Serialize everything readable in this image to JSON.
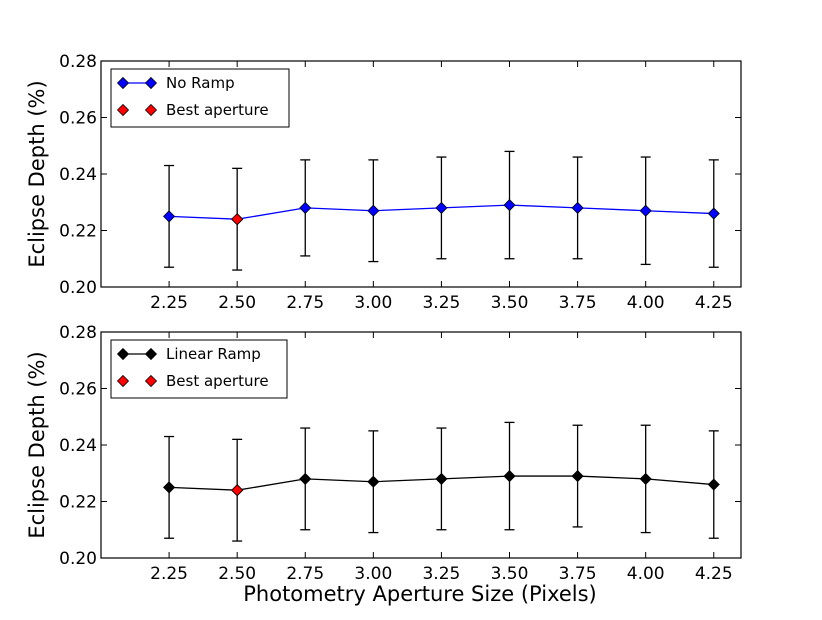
{
  "chart_data": [
    {
      "type": "line",
      "title": "",
      "xlabel": "",
      "ylabel": "Eclipse Depth (%)",
      "xlim": [
        2.0,
        4.35
      ],
      "ylim": [
        0.2,
        0.28
      ],
      "x_ticks": [
        "2.25",
        "2.50",
        "2.75",
        "3.00",
        "3.25",
        "3.50",
        "3.75",
        "4.00",
        "4.25"
      ],
      "y_ticks": [
        "0.20",
        "0.22",
        "0.24",
        "0.26",
        "0.28"
      ],
      "series": [
        {
          "name": "No Ramp",
          "color": "#0000ff",
          "marker_color": "#0000ff",
          "x": [
            2.25,
            2.5,
            2.75,
            3.0,
            3.25,
            3.5,
            3.75,
            4.0,
            4.25
          ],
          "values": [
            0.225,
            0.224,
            0.228,
            0.227,
            0.228,
            0.229,
            0.228,
            0.227,
            0.226
          ],
          "err_low": [
            0.207,
            0.206,
            0.211,
            0.209,
            0.21,
            0.21,
            0.21,
            0.208,
            0.207
          ],
          "err_high": [
            0.243,
            0.242,
            0.245,
            0.245,
            0.246,
            0.248,
            0.246,
            0.246,
            0.245
          ]
        },
        {
          "name": "Best aperture",
          "color": "#ff0000",
          "marker_color": "#ff0000",
          "x": [
            2.5
          ],
          "values": [
            0.224
          ]
        }
      ],
      "legend": "top-left"
    },
    {
      "type": "line",
      "title": "",
      "xlabel": "Photometry Aperture Size (Pixels)",
      "ylabel": "Eclipse Depth (%)",
      "xlim": [
        2.0,
        4.35
      ],
      "ylim": [
        0.2,
        0.28
      ],
      "x_ticks": [
        "2.25",
        "2.50",
        "2.75",
        "3.00",
        "3.25",
        "3.50",
        "3.75",
        "4.00",
        "4.25"
      ],
      "y_ticks": [
        "0.20",
        "0.22",
        "0.24",
        "0.26",
        "0.28"
      ],
      "series": [
        {
          "name": "Linear Ramp",
          "color": "#000000",
          "marker_color": "#000000",
          "x": [
            2.25,
            2.5,
            2.75,
            3.0,
            3.25,
            3.5,
            3.75,
            4.0,
            4.25
          ],
          "values": [
            0.225,
            0.224,
            0.228,
            0.227,
            0.228,
            0.229,
            0.229,
            0.228,
            0.226
          ],
          "err_low": [
            0.207,
            0.206,
            0.21,
            0.209,
            0.21,
            0.21,
            0.211,
            0.209,
            0.207
          ],
          "err_high": [
            0.243,
            0.242,
            0.246,
            0.245,
            0.246,
            0.248,
            0.247,
            0.247,
            0.245
          ]
        },
        {
          "name": "Best aperture",
          "color": "#ff0000",
          "marker_color": "#ff0000",
          "x": [
            2.5
          ],
          "values": [
            0.224
          ]
        }
      ],
      "legend": "top-left"
    }
  ]
}
